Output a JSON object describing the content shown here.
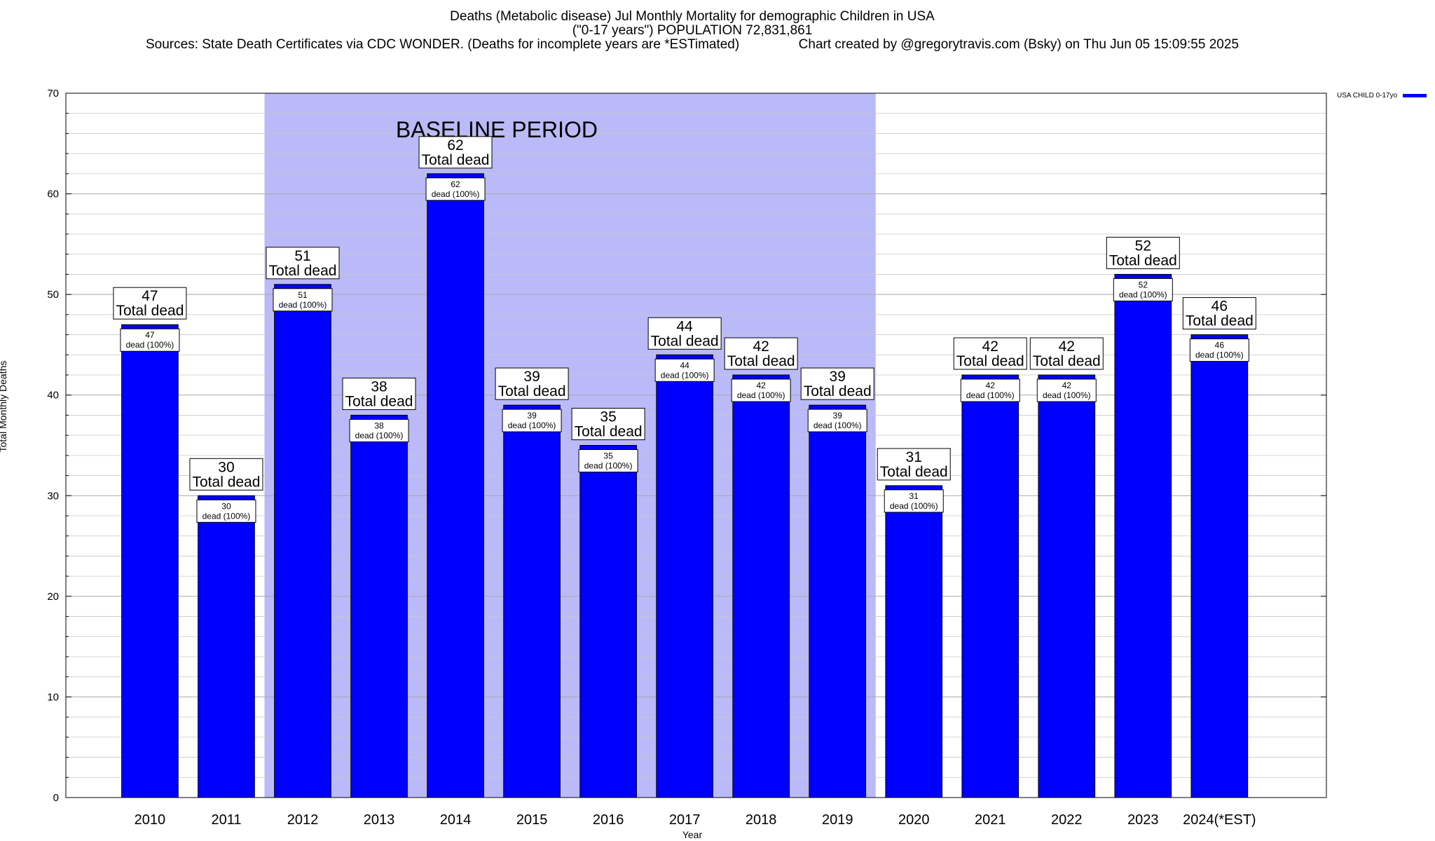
{
  "header": {
    "title_line1": "Deaths (Metabolic disease) Jul Monthly Mortality for demographic Children in USA",
    "title_line2": "(\"0-17 years\") POPULATION 72,831,861",
    "sources": "Sources: State Death Certificates via CDC WONDER. (Deaths for incomplete years are *ESTimated)",
    "credit": "Chart created by @gregorytravis.com (Bsky) on Thu Jun 05 15:09:55 2025"
  },
  "legend": {
    "label": "USA CHILD 0-17yo",
    "color": "#0000ff"
  },
  "colors": {
    "bar": "#0000ff",
    "baseline_band": "#babaf8",
    "grid": "#c8c8c8"
  },
  "chart_data": {
    "type": "bar",
    "xlabel": "Year",
    "ylabel": "Total Monthly Deaths",
    "ylim": [
      0,
      70
    ],
    "yticks": [
      0,
      10,
      20,
      30,
      40,
      50,
      60,
      70
    ],
    "grid": true,
    "legend_position": "top-right, outside plot",
    "categories": [
      "2010",
      "2011",
      "2012",
      "2013",
      "2014",
      "2015",
      "2016",
      "2017",
      "2018",
      "2019",
      "2020",
      "2021",
      "2022",
      "2023",
      "2024(*EST)"
    ],
    "series": [
      {
        "name": "USA CHILD 0-17yo",
        "values": [
          47,
          30,
          51,
          38,
          62,
          39,
          35,
          44,
          42,
          39,
          31,
          42,
          42,
          52,
          46
        ]
      }
    ],
    "top_label_suffix": "Total dead",
    "inner_label_suffix": "dead (100%)",
    "baseline_period": {
      "label": "BASELINE PERIOD",
      "from_category": "2012",
      "to_category": "2019"
    }
  }
}
